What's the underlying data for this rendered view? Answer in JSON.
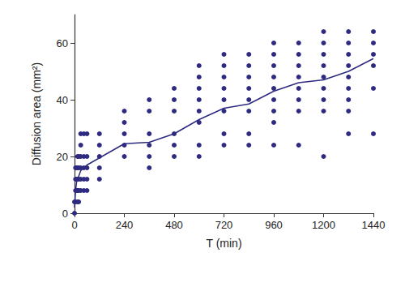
{
  "chart_data": {
    "type": "scatter",
    "x_label": "T (min)",
    "y_label": "Diffusion area (mm²)",
    "xlim": [
      0,
      1440
    ],
    "xticks": [
      0,
      240,
      480,
      720,
      960,
      1200,
      1440
    ],
    "ylim": [
      0,
      70
    ],
    "yticks": [
      0,
      20,
      40,
      60
    ],
    "grid": false,
    "color": "#2d2a7f",
    "series": [
      {
        "type": "scatter",
        "marker": "circle",
        "color": "#2d2a7f",
        "x": [
          0,
          0,
          5,
          5,
          5,
          5,
          10,
          10,
          10,
          15,
          15,
          15,
          15,
          15,
          20,
          20,
          20,
          20,
          20,
          30,
          30,
          30,
          30,
          30,
          30,
          45,
          45,
          45,
          45,
          45,
          60,
          60,
          60,
          60,
          60,
          120,
          120,
          120,
          120,
          120,
          240,
          240,
          240,
          240,
          240,
          360,
          360,
          360,
          360,
          360,
          360,
          480,
          480,
          480,
          480,
          480,
          480,
          600,
          600,
          600,
          600,
          600,
          600,
          600,
          600,
          720,
          720,
          720,
          720,
          720,
          720,
          720,
          720,
          840,
          840,
          840,
          840,
          840,
          840,
          840,
          840,
          960,
          960,
          960,
          960,
          960,
          960,
          960,
          960,
          960,
          1080,
          1080,
          1080,
          1080,
          1080,
          1080,
          1080,
          1080,
          1200,
          1200,
          1200,
          1200,
          1200,
          1200,
          1200,
          1200,
          1200,
          1320,
          1320,
          1320,
          1320,
          1320,
          1320,
          1320,
          1320,
          1320,
          1440,
          1440,
          1440,
          1440,
          1440,
          1440
        ],
        "values": [
          0,
          4,
          4,
          8,
          12,
          16,
          8,
          12,
          16,
          4,
          8,
          12,
          16,
          20,
          4,
          8,
          12,
          16,
          20,
          8,
          12,
          16,
          20,
          24,
          28,
          8,
          12,
          16,
          20,
          28,
          8,
          12,
          16,
          20,
          28,
          12,
          16,
          20,
          24,
          28,
          20,
          24,
          28,
          32,
          36,
          16,
          20,
          24,
          28,
          36,
          40,
          20,
          24,
          28,
          36,
          40,
          44,
          20,
          24,
          32,
          36,
          40,
          44,
          48,
          52,
          24,
          28,
          36,
          40,
          44,
          48,
          52,
          56,
          24,
          28,
          36,
          40,
          44,
          48,
          52,
          56,
          24,
          32,
          36,
          40,
          44,
          48,
          52,
          56,
          60,
          24,
          36,
          40,
          44,
          48,
          52,
          56,
          60,
          20,
          36,
          40,
          44,
          48,
          52,
          56,
          60,
          64,
          28,
          36,
          40,
          44,
          48,
          52,
          56,
          60,
          64,
          28,
          44,
          52,
          56,
          60,
          64
        ]
      },
      {
        "type": "line",
        "line_style": "solid",
        "color": "#2d2a7f",
        "x": [
          0,
          5,
          10,
          15,
          20,
          30,
          45,
          60,
          120,
          240,
          360,
          480,
          600,
          720,
          840,
          960,
          1080,
          1200,
          1320,
          1440
        ],
        "values": [
          2,
          8,
          11,
          12,
          13,
          15,
          16,
          17,
          19.5,
          24.5,
          25,
          28,
          33,
          37,
          38.5,
          43,
          46,
          47,
          50,
          54.5
        ]
      }
    ]
  }
}
